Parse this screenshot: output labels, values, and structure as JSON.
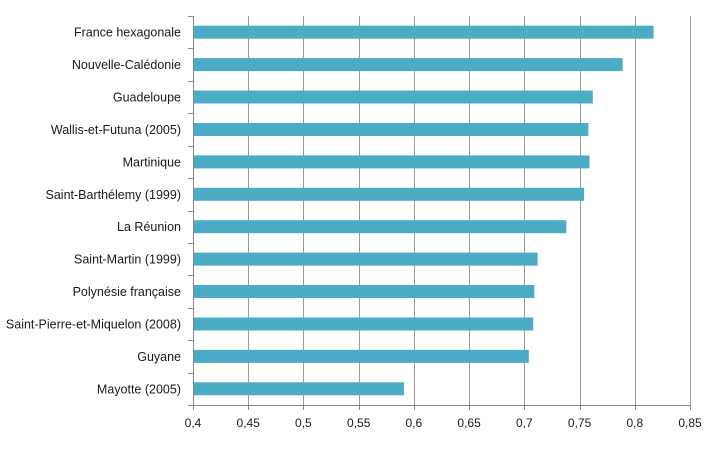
{
  "chart_data": {
    "type": "bar",
    "orientation": "horizontal",
    "title": "",
    "xlabel": "",
    "ylabel": "",
    "categories": [
      "France hexagonale",
      "Nouvelle-Calédonie",
      "Guadeloupe",
      "Wallis-et-Futuna (2005)",
      "Martinique",
      "Saint-Barthélemy (1999)",
      "La Réunion",
      "Saint-Martin (1999)",
      "Polynésie française",
      "Saint-Pierre-et-Miquelon (2008)",
      "Guyane",
      "Mayotte (2005)"
    ],
    "values": [
      0.817,
      0.789,
      0.762,
      0.758,
      0.759,
      0.754,
      0.738,
      0.712,
      0.709,
      0.708,
      0.704,
      0.591
    ],
    "xlim": [
      0.4,
      0.85
    ],
    "xticks": [
      0.4,
      0.45,
      0.5,
      0.55,
      0.6,
      0.65,
      0.7,
      0.75,
      0.8,
      0.85
    ],
    "xtick_labels": [
      "0,4",
      "0,45",
      "0,5",
      "0,55",
      "0,6",
      "0,65",
      "0,7",
      "0,75",
      "0,8",
      "0,85"
    ],
    "grid": true,
    "legend": "none",
    "colors": {
      "bar": "#4bacc6"
    }
  }
}
